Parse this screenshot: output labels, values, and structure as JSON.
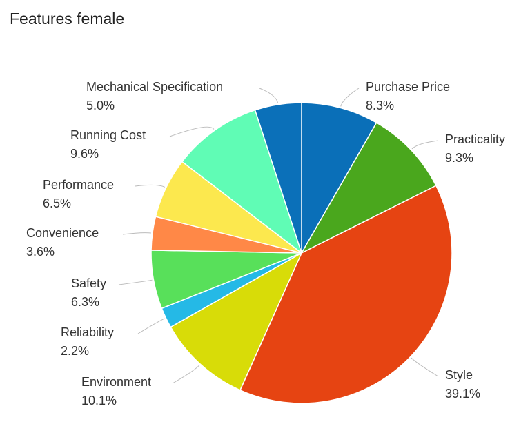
{
  "chart_data": {
    "type": "pie",
    "title": "Features female",
    "slices": [
      {
        "name": "Purchase Price",
        "value": 8.3,
        "label": "8.3%",
        "color": "#0a6fb8"
      },
      {
        "name": "Practicality",
        "value": 9.3,
        "label": "9.3%",
        "color": "#4aa71d"
      },
      {
        "name": "Style",
        "value": 39.1,
        "label": "39.1%",
        "color": "#e64412"
      },
      {
        "name": "Environment",
        "value": 10.1,
        "label": "10.1%",
        "color": "#d8dc08"
      },
      {
        "name": "Reliability",
        "value": 2.2,
        "label": "2.2%",
        "color": "#25b9e6"
      },
      {
        "name": "Safety",
        "value": 6.3,
        "label": "6.3%",
        "color": "#58e05a"
      },
      {
        "name": "Convenience",
        "value": 3.6,
        "label": "3.6%",
        "color": "#ff8847"
      },
      {
        "name": "Performance",
        "value": 6.5,
        "label": "6.5%",
        "color": "#fce84e"
      },
      {
        "name": "Running Cost",
        "value": 9.6,
        "label": "9.6%",
        "color": "#60fcb5"
      },
      {
        "name": "Mechanical Specification",
        "value": 5.0,
        "label": "5.0%",
        "color": "#0b70b9"
      }
    ],
    "start": "top",
    "direction": "clockwise",
    "legend": "none"
  }
}
